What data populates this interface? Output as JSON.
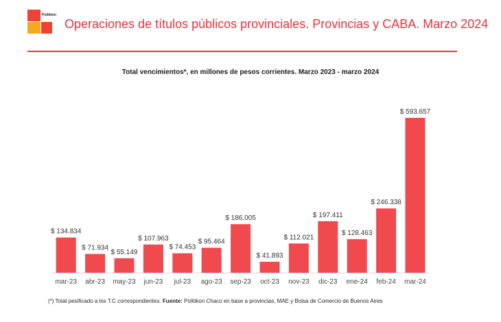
{
  "header": {
    "logo_text": "Politikon",
    "title": "Operaciones de títulos públicos provinciales. Provincias y CABA. Marzo 2024"
  },
  "colors": {
    "accent": "#e8333a",
    "bar": "#f04a4f",
    "logo_red": "#ef4136",
    "logo_orange": "#f7a823"
  },
  "chart_data": {
    "type": "bar",
    "title": "Total vencimientos*, en millones de pesos corrientes. Marzo 2023 - marzo 2024",
    "categories": [
      "mar-23",
      "abr-23",
      "may-23",
      "jun-23",
      "jul-23",
      "ago-23",
      "sep-23",
      "oct-23",
      "nov-23",
      "dic-23",
      "ene-24",
      "feb-24",
      "mar-24"
    ],
    "values": [
      134834,
      71934,
      55149,
      107963,
      74453,
      95464,
      186005,
      41893,
      112021,
      197411,
      128463,
      246338,
      593657
    ],
    "labels": [
      "$ 134.834",
      "$ 71.934",
      "$ 55.149",
      "$ 107.963",
      "$ 74.453",
      "$ 95.464",
      "$ 186.005",
      "$ 41.893",
      "$ 112.021",
      "$ 197.411",
      "$ 128.463",
      "$ 246.338",
      "$ 593.657"
    ],
    "ylim": [
      0,
      600000
    ],
    "grid": false,
    "legend": "none"
  },
  "footnote": {
    "note": "(*) Total pesificado a los T.C correspondientes.",
    "source_label": "Fuente:",
    "source_text": "Politikon Chaco en base a provincias, MAE y Bolsa de Comercio de Buenos Aires"
  }
}
